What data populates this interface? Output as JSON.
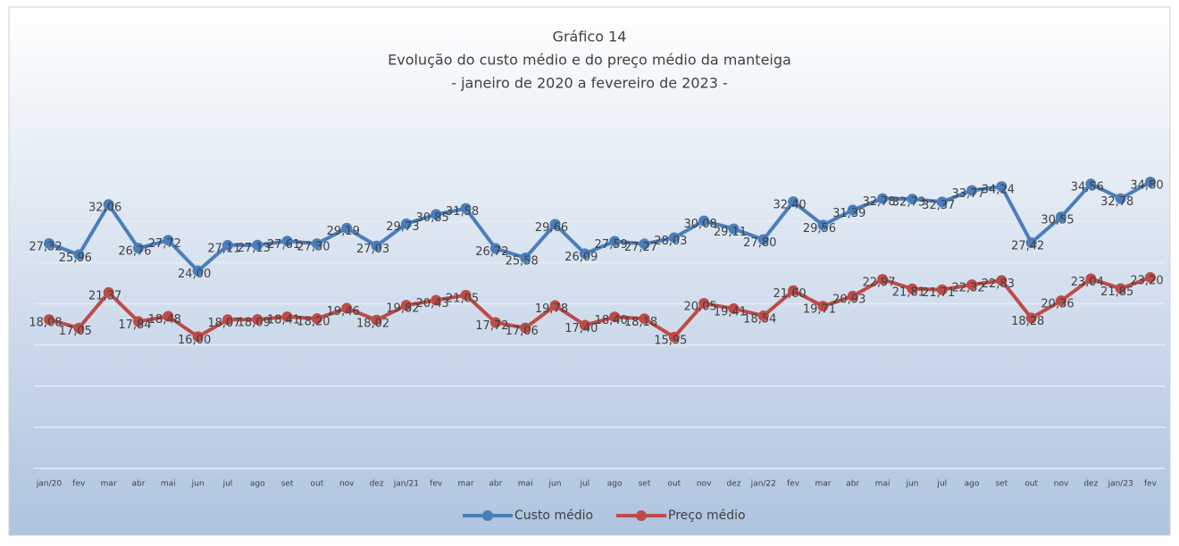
{
  "chart_data": {
    "type": "line",
    "title": "Gráfico 14",
    "subtitle": [
      "Evolução do custo médio e do preço médio da manteiga",
      "- janeiro de 2020 a fevereiro de 2023 -"
    ],
    "categories": [
      "jan/20",
      "fev",
      "mar",
      "abr",
      "mai",
      "jun",
      "jul",
      "ago",
      "set",
      "out",
      "nov",
      "dez",
      "jan/21",
      "fev",
      "mar",
      "abr",
      "mai",
      "jun",
      "jul",
      "ago",
      "set",
      "out",
      "nov",
      "dez",
      "jan/22",
      "fev",
      "mar",
      "abr",
      "mai",
      "jun",
      "jul",
      "ago",
      "set",
      "out",
      "nov",
      "dez",
      "jan/23",
      "fev"
    ],
    "series": [
      {
        "name": "Custo médio",
        "color": "#4a7ebb",
        "values": [
          27.32,
          25.96,
          32.06,
          26.76,
          27.72,
          24.0,
          27.11,
          27.13,
          27.61,
          27.3,
          29.19,
          27.03,
          29.73,
          30.85,
          31.58,
          26.72,
          25.58,
          29.66,
          26.09,
          27.59,
          27.27,
          28.03,
          30.08,
          29.11,
          27.8,
          32.4,
          29.56,
          31.39,
          32.78,
          32.73,
          32.37,
          33.77,
          34.24,
          27.42,
          30.55,
          34.56,
          32.78,
          34.8
        ],
        "value_labels": [
          "27,32",
          "25,96",
          "32,06",
          "26,76",
          "27,72",
          "24,00",
          "27,11",
          "27,13",
          "27,61",
          "27,30",
          "29,19",
          "27,03",
          "29,73",
          "30,85",
          "31,58",
          "26,72",
          "25,58",
          "29,66",
          "26,09",
          "27,59",
          "27,27",
          "28,03",
          "30,08",
          "29,11",
          "27,80",
          "32,40",
          "29,56",
          "31,39",
          "32,78",
          "32,73",
          "32,37",
          "33,77",
          "34,24",
          "27,42",
          "30,55",
          "34,56",
          "32,78",
          "34,80"
        ]
      },
      {
        "name": "Preço médio",
        "color": "#be4b48",
        "values": [
          18.08,
          17.05,
          21.37,
          17.84,
          18.48,
          16.0,
          18.07,
          18.09,
          18.41,
          18.2,
          19.46,
          18.02,
          19.82,
          20.43,
          21.05,
          17.72,
          17.06,
          19.78,
          17.4,
          18.4,
          18.18,
          15.95,
          20.05,
          19.41,
          18.54,
          21.6,
          19.71,
          20.93,
          22.97,
          21.81,
          21.71,
          22.32,
          22.83,
          18.28,
          20.36,
          23.04,
          21.85,
          23.2
        ],
        "value_labels": [
          "18,08",
          "17,05",
          "21,37",
          "17,84",
          "18,48",
          "16,00",
          "18,07",
          "18,09",
          "18,41",
          "18,20",
          "19,46",
          "18,02",
          "19,82",
          "20,43",
          "21,05",
          "17,72",
          "17,06",
          "19,78",
          "17,40",
          "18,40",
          "18,18",
          "15,95",
          "20,05",
          "19,41",
          "18,54",
          "21,60",
          "19,71",
          "20,93",
          "22,97",
          "21,81",
          "21,71",
          "22,32",
          "22,83",
          "18,28",
          "20,36",
          "23,04",
          "21,85",
          "23,20"
        ]
      }
    ],
    "ylim": [
      0,
      40
    ],
    "yticks": [
      0,
      5,
      10,
      15,
      20,
      25,
      30,
      35,
      40
    ],
    "grid": true,
    "legend": "bottom"
  }
}
